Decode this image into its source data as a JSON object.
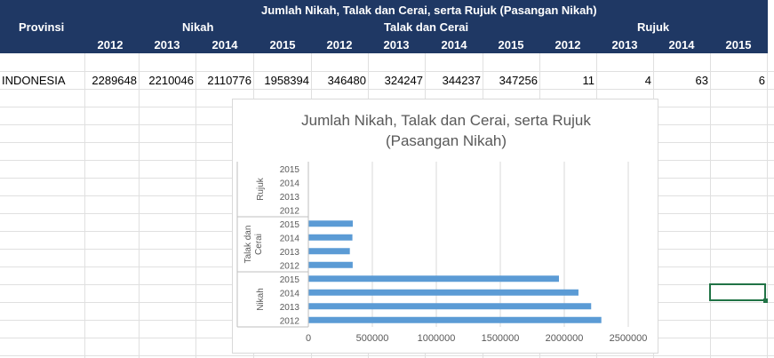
{
  "sheet": {
    "title": "Jumlah Nikah, Talak dan Cerai, serta Rujuk (Pasangan Nikah)",
    "col_provinsi": "Provinsi",
    "groups": [
      "Nikah",
      "Talak dan Cerai",
      "Rujuk"
    ],
    "years": [
      "2012",
      "2013",
      "2014",
      "2015",
      "2012",
      "2013",
      "2014",
      "2015",
      "2012",
      "2013",
      "2014",
      "2015"
    ],
    "row": {
      "province": "INDONESIA",
      "values": [
        "2289648",
        "2210046",
        "2110776",
        "1958394",
        "346480",
        "324247",
        "344237",
        "347256",
        "11",
        "4",
        "63",
        "6"
      ]
    },
    "colors": {
      "header_bg": "#1f3864",
      "bar": "#5b9bd5",
      "selection": "#217346"
    }
  },
  "chart_data": {
    "type": "bar",
    "orientation": "horizontal",
    "title": "Jumlah Nikah, Talak dan Cerai, serta Rujuk (Pasangan Nikah)",
    "title_lines": [
      "Jumlah Nikah, Talak dan Cerai, serta Rujuk",
      "(Pasangan Nikah)"
    ],
    "groups": [
      {
        "name": "Nikah",
        "categories": [
          "2012",
          "2013",
          "2014",
          "2015"
        ],
        "values": [
          2289648,
          2210046,
          2110776,
          1958394
        ]
      },
      {
        "name": "Talak dan Cerai",
        "group_label_lines": [
          "Talak dan",
          "Cerai"
        ],
        "categories": [
          "2012",
          "2013",
          "2014",
          "2015"
        ],
        "values": [
          346480,
          324247,
          344237,
          347256
        ]
      },
      {
        "name": "Rujuk",
        "categories": [
          "2012",
          "2013",
          "2014",
          "2015"
        ],
        "values": [
          11,
          4,
          63,
          6
        ]
      }
    ],
    "xlim": [
      0,
      2500000
    ],
    "xticks": [
      "0",
      "500000",
      "1000000",
      "1500000",
      "2000000",
      "2500000"
    ],
    "grid": true,
    "legend": "none"
  }
}
